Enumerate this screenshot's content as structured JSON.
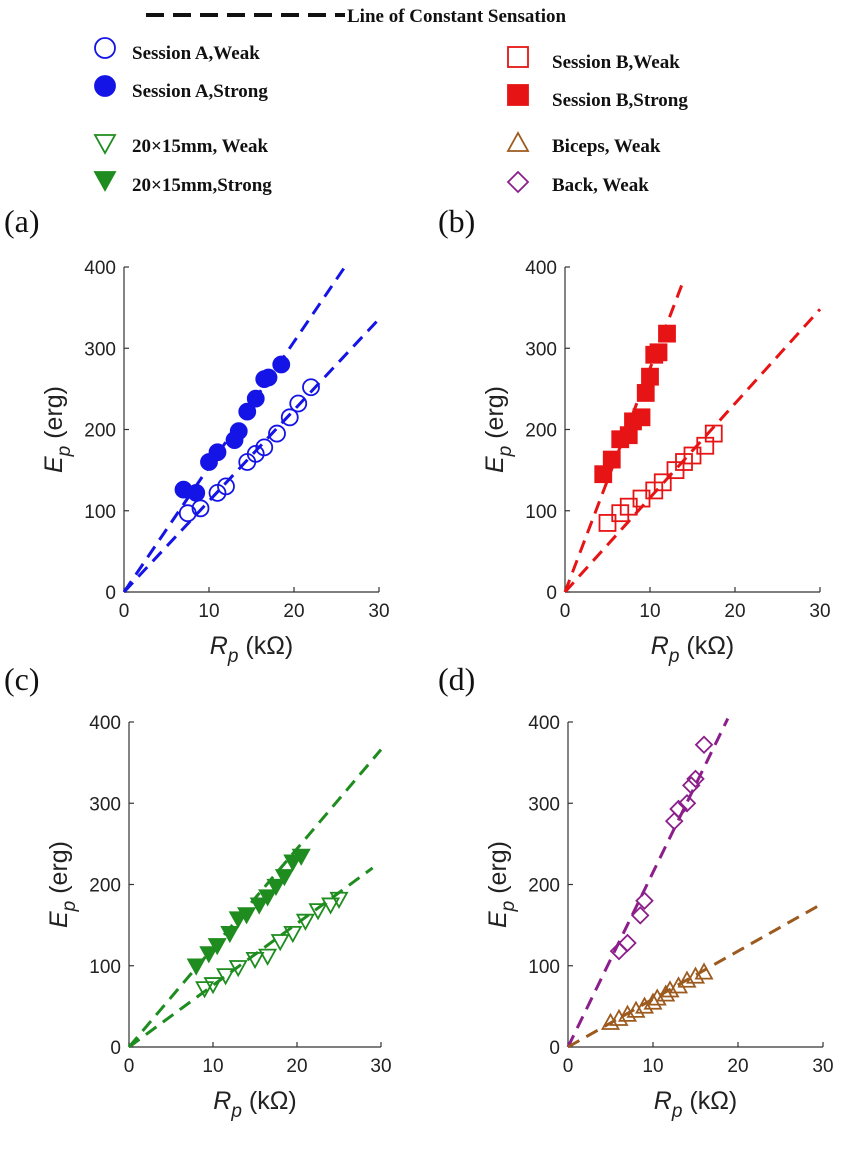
{
  "legend": {
    "constant_line": "Line of Constant Sensation",
    "entries": [
      {
        "label": "Session A,Weak",
        "marker": "circle",
        "filled": false,
        "color": "#1414e6"
      },
      {
        "label": "Session A,Strong",
        "marker": "circle",
        "filled": true,
        "color": "#1414e6"
      },
      {
        "label": "20×15mm, Weak",
        "marker": "triangle-down",
        "filled": false,
        "color": "#1e8c1e"
      },
      {
        "label": "20×15mm,Strong",
        "marker": "triangle-down",
        "filled": true,
        "color": "#1e8c1e"
      },
      {
        "label": "Session B,Weak",
        "marker": "square",
        "filled": false,
        "color": "#e61414"
      },
      {
        "label": "Session B,Strong",
        "marker": "square",
        "filled": true,
        "color": "#e61414"
      },
      {
        "label": "Biceps, Weak",
        "marker": "triangle-up",
        "filled": false,
        "color": "#9c5a1e"
      },
      {
        "label": "Back, Weak",
        "marker": "diamond",
        "filled": false,
        "color": "#8c1e8c"
      }
    ]
  },
  "chart_data": [
    {
      "panel": "(a)",
      "type": "scatter",
      "xlabel": "R",
      "xlabel_sub": "p",
      "xlabel_unit": " (kΩ)",
      "ylabel": "E",
      "ylabel_sub": "p",
      "ylabel_unit": " (erg)",
      "xlim": [
        0,
        30
      ],
      "ylim": [
        0,
        400
      ],
      "xticks": [
        "0",
        "10",
        "20",
        "30"
      ],
      "yticks": [
        "0",
        "100",
        "200",
        "300",
        "400"
      ],
      "lines": [
        {
          "slope": 15.4,
          "x_end": 26,
          "color": "#1414e6"
        },
        {
          "slope": 11.2,
          "x_end": 30,
          "color": "#1414e6"
        }
      ],
      "series": [
        {
          "name": "Session A,Weak",
          "marker": "circle",
          "filled": false,
          "color": "#1414e6",
          "points": [
            [
              7.5,
              97
            ],
            [
              9,
              103
            ],
            [
              11,
              122
            ],
            [
              12,
              130
            ],
            [
              14.5,
              160
            ],
            [
              15.5,
              170
            ],
            [
              16.5,
              178
            ],
            [
              18,
              195
            ],
            [
              19.5,
              215
            ],
            [
              20.5,
              232
            ],
            [
              22,
              252
            ]
          ]
        },
        {
          "name": "Session A,Strong",
          "marker": "circle",
          "filled": true,
          "color": "#1414e6",
          "points": [
            [
              7,
              126
            ],
            [
              8.5,
              122
            ],
            [
              10,
              160
            ],
            [
              11,
              172
            ],
            [
              13,
              187
            ],
            [
              13.5,
              198
            ],
            [
              14.5,
              222
            ],
            [
              15.5,
              238
            ],
            [
              16.5,
              262
            ],
            [
              17,
              264
            ],
            [
              18.5,
              280
            ]
          ]
        }
      ]
    },
    {
      "panel": "(b)",
      "type": "scatter",
      "xlabel": "R",
      "xlabel_sub": "p",
      "xlabel_unit": " (kΩ)",
      "ylabel": "E",
      "ylabel_sub": "p",
      "ylabel_unit": " (erg)",
      "xlim": [
        0,
        30
      ],
      "ylim": [
        0,
        400
      ],
      "xticks": [
        "0",
        "10",
        "20",
        "30"
      ],
      "yticks": [
        "0",
        "100",
        "200",
        "300",
        "400"
      ],
      "lines": [
        {
          "slope": 27.5,
          "x_end": 14,
          "color": "#e61414"
        },
        {
          "slope": 11.6,
          "x_end": 30,
          "color": "#e61414"
        }
      ],
      "series": [
        {
          "name": "Session B,Weak",
          "marker": "square",
          "filled": false,
          "color": "#e61414",
          "points": [
            [
              5,
              85
            ],
            [
              6.5,
              97
            ],
            [
              7.5,
              105
            ],
            [
              9,
              115
            ],
            [
              10.5,
              125
            ],
            [
              11.5,
              135
            ],
            [
              13,
              150
            ],
            [
              14,
              160
            ],
            [
              15,
              168
            ],
            [
              16.5,
              180
            ],
            [
              17.5,
              195
            ]
          ]
        },
        {
          "name": "Session B,Strong",
          "marker": "square",
          "filled": true,
          "color": "#e61414",
          "points": [
            [
              4.5,
              145
            ],
            [
              5.5,
              163
            ],
            [
              6.5,
              188
            ],
            [
              7.5,
              193
            ],
            [
              8,
              210
            ],
            [
              9,
              215
            ],
            [
              9.5,
              245
            ],
            [
              10,
              265
            ],
            [
              10.5,
              292
            ],
            [
              11,
              295
            ],
            [
              12,
              318
            ]
          ]
        }
      ]
    },
    {
      "panel": "(c)",
      "type": "scatter",
      "xlabel": "R",
      "xlabel_sub": "p",
      "xlabel_unit": " (kΩ)",
      "ylabel": "E",
      "ylabel_sub": "p",
      "ylabel_unit": " (erg)",
      "xlim": [
        0,
        30
      ],
      "ylim": [
        0,
        400
      ],
      "xticks": [
        "0",
        "10",
        "20",
        "30"
      ],
      "yticks": [
        "0",
        "100",
        "200",
        "300",
        "400"
      ],
      "lines": [
        {
          "slope": 12.2,
          "x_end": 30,
          "color": "#1e8c1e"
        },
        {
          "slope": 7.6,
          "x_end": 29,
          "color": "#1e8c1e"
        }
      ],
      "series": [
        {
          "name": "20×15mm, Weak",
          "marker": "triangle-down",
          "filled": false,
          "color": "#1e8c1e",
          "points": [
            [
              9,
              72
            ],
            [
              10,
              77
            ],
            [
              11.5,
              88
            ],
            [
              13,
              98
            ],
            [
              15,
              108
            ],
            [
              16.5,
              112
            ],
            [
              18,
              130
            ],
            [
              19.5,
              140
            ],
            [
              21,
              155
            ],
            [
              22.5,
              168
            ],
            [
              24,
              175
            ],
            [
              25,
              182
            ]
          ]
        },
        {
          "name": "20×15mm,Strong",
          "marker": "triangle-down",
          "filled": true,
          "color": "#1e8c1e",
          "points": [
            [
              8,
              100
            ],
            [
              9.5,
              115
            ],
            [
              10.5,
              125
            ],
            [
              12,
              140
            ],
            [
              13,
              158
            ],
            [
              14,
              163
            ],
            [
              15.5,
              175
            ],
            [
              16.5,
              185
            ],
            [
              17.5,
              198
            ],
            [
              18.5,
              210
            ],
            [
              19.5,
              228
            ],
            [
              20.5,
              235
            ]
          ]
        }
      ]
    },
    {
      "panel": "(d)",
      "type": "scatter",
      "xlabel": "R",
      "xlabel_sub": "p",
      "xlabel_unit": " (kΩ)",
      "ylabel": "E",
      "ylabel_sub": "p",
      "ylabel_unit": " (erg)",
      "xlim": [
        0,
        30
      ],
      "ylim": [
        0,
        400
      ],
      "xticks": [
        "0",
        "10",
        "20",
        "30"
      ],
      "yticks": [
        "0",
        "100",
        "200",
        "300",
        "400"
      ],
      "lines": [
        {
          "slope": 21.5,
          "x_end": 18.8,
          "color": "#8c1e8c"
        },
        {
          "slope": 5.9,
          "x_end": 30,
          "color": "#9c5a1e"
        }
      ],
      "series": [
        {
          "name": "Biceps, Weak",
          "marker": "triangle-up",
          "filled": false,
          "color": "#9c5a1e",
          "points": [
            [
              5,
              30
            ],
            [
              6,
              35
            ],
            [
              7,
              40
            ],
            [
              8,
              45
            ],
            [
              9,
              50
            ],
            [
              10,
              55
            ],
            [
              10.5,
              60
            ],
            [
              11.5,
              65
            ],
            [
              12,
              70
            ],
            [
              13,
              75
            ],
            [
              14,
              82
            ],
            [
              15,
              87
            ],
            [
              16,
              92
            ]
          ]
        },
        {
          "name": "Back, Weak",
          "marker": "diamond",
          "filled": false,
          "color": "#8c1e8c",
          "points": [
            [
              6,
              118
            ],
            [
              7,
              128
            ],
            [
              8.5,
              162
            ],
            [
              9,
              180
            ],
            [
              12.5,
              278
            ],
            [
              13,
              293
            ],
            [
              14,
              300
            ],
            [
              14.5,
              322
            ],
            [
              15,
              330
            ],
            [
              16,
              372
            ]
          ]
        }
      ]
    }
  ]
}
